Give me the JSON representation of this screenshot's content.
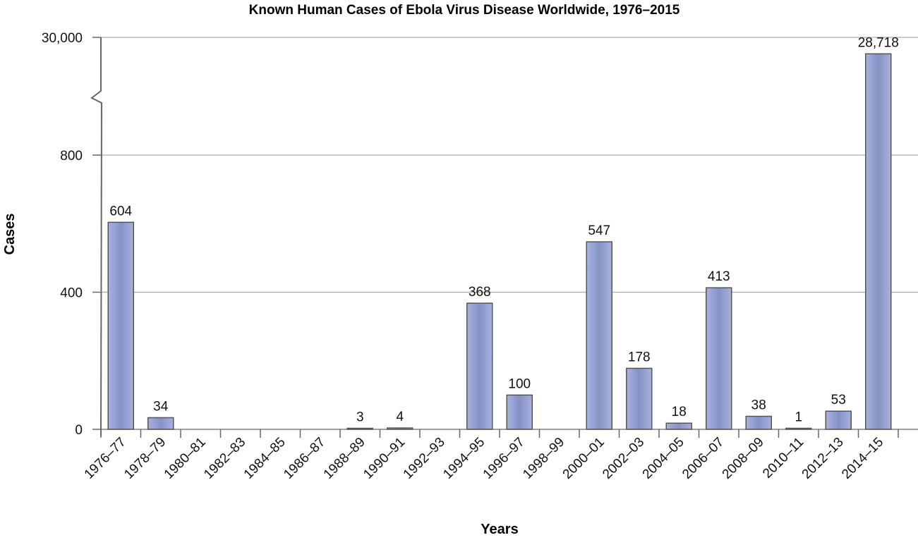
{
  "chart_data": {
    "type": "bar",
    "title": "Known Human Cases of Ebola Virus Disease Worldwide, 1976–2015",
    "xlabel": "Years",
    "ylabel": "Cases",
    "categories": [
      "1976–77",
      "1978–79",
      "1980–81",
      "1982–83",
      "1984–85",
      "1986–87",
      "1988–89",
      "1990–91",
      "1992–93",
      "1994–95",
      "1996–97",
      "1998–99",
      "2000–01",
      "2002–03",
      "2004–05",
      "2006–07",
      "2008–09",
      "2010–11",
      "2012–13",
      "2014–15"
    ],
    "values": [
      604,
      34,
      0,
      0,
      0,
      0,
      3,
      4,
      0,
      368,
      100,
      0,
      547,
      178,
      18,
      413,
      38,
      1,
      53,
      28718
    ],
    "data_labels": [
      "604",
      "34",
      "",
      "",
      "",
      "",
      "3",
      "4",
      "",
      "368",
      "100",
      "",
      "547",
      "178",
      "18",
      "413",
      "38",
      "1",
      "53",
      "28,718"
    ],
    "y_ticks": [
      0,
      400,
      800,
      30000
    ],
    "y_tick_labels": [
      "0",
      "400",
      "800",
      "30,000"
    ],
    "ylim": [
      0,
      30000
    ],
    "axis_break": [
      800,
      30000
    ],
    "grid": true,
    "bar_color": "#8a96c9",
    "bar_edge_color": "#555555"
  }
}
